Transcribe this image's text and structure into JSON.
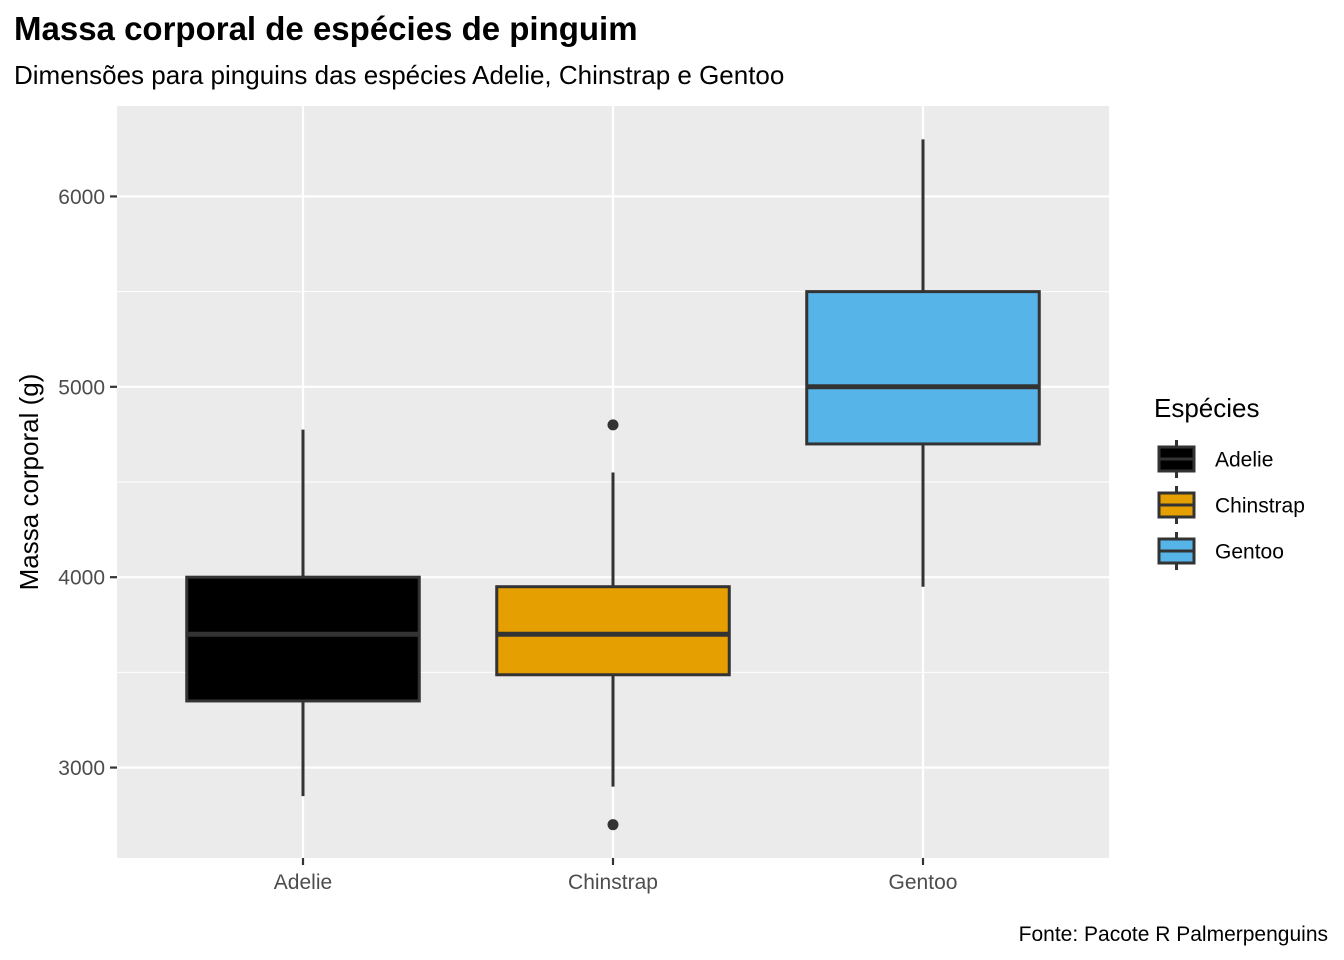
{
  "chart_data": {
    "type": "boxplot",
    "title": "Massa corporal de espécies de pinguim",
    "subtitle": "Dimensões para pinguins das espécies Adelie, Chinstrap e Gentoo",
    "caption": "Fonte: Pacote R Palmerpenguins",
    "xlabel": "",
    "ylabel": "Massa corporal (g)",
    "ylim": [
      2525,
      6475
    ],
    "yticks": [
      3000,
      4000,
      5000,
      6000
    ],
    "grid": true,
    "legend": {
      "title": "Espécies",
      "placement": "right"
    },
    "categories": [
      "Adelie",
      "Chinstrap",
      "Gentoo"
    ],
    "series": [
      {
        "name": "Adelie",
        "color": "#000000",
        "whisker_low": 2850,
        "q1": 3350,
        "median": 3700,
        "q3": 4000,
        "whisker_high": 4775,
        "outliers": []
      },
      {
        "name": "Chinstrap",
        "color": "#E69F00",
        "whisker_low": 2900,
        "q1": 3487.5,
        "median": 3700,
        "q3": 3950,
        "whisker_high": 4550,
        "outliers": [
          4800,
          2700
        ]
      },
      {
        "name": "Gentoo",
        "color": "#56B4E9",
        "whisker_low": 3950,
        "q1": 4700,
        "median": 5000,
        "q3": 5500,
        "whisker_high": 6300,
        "outliers": []
      }
    ]
  }
}
